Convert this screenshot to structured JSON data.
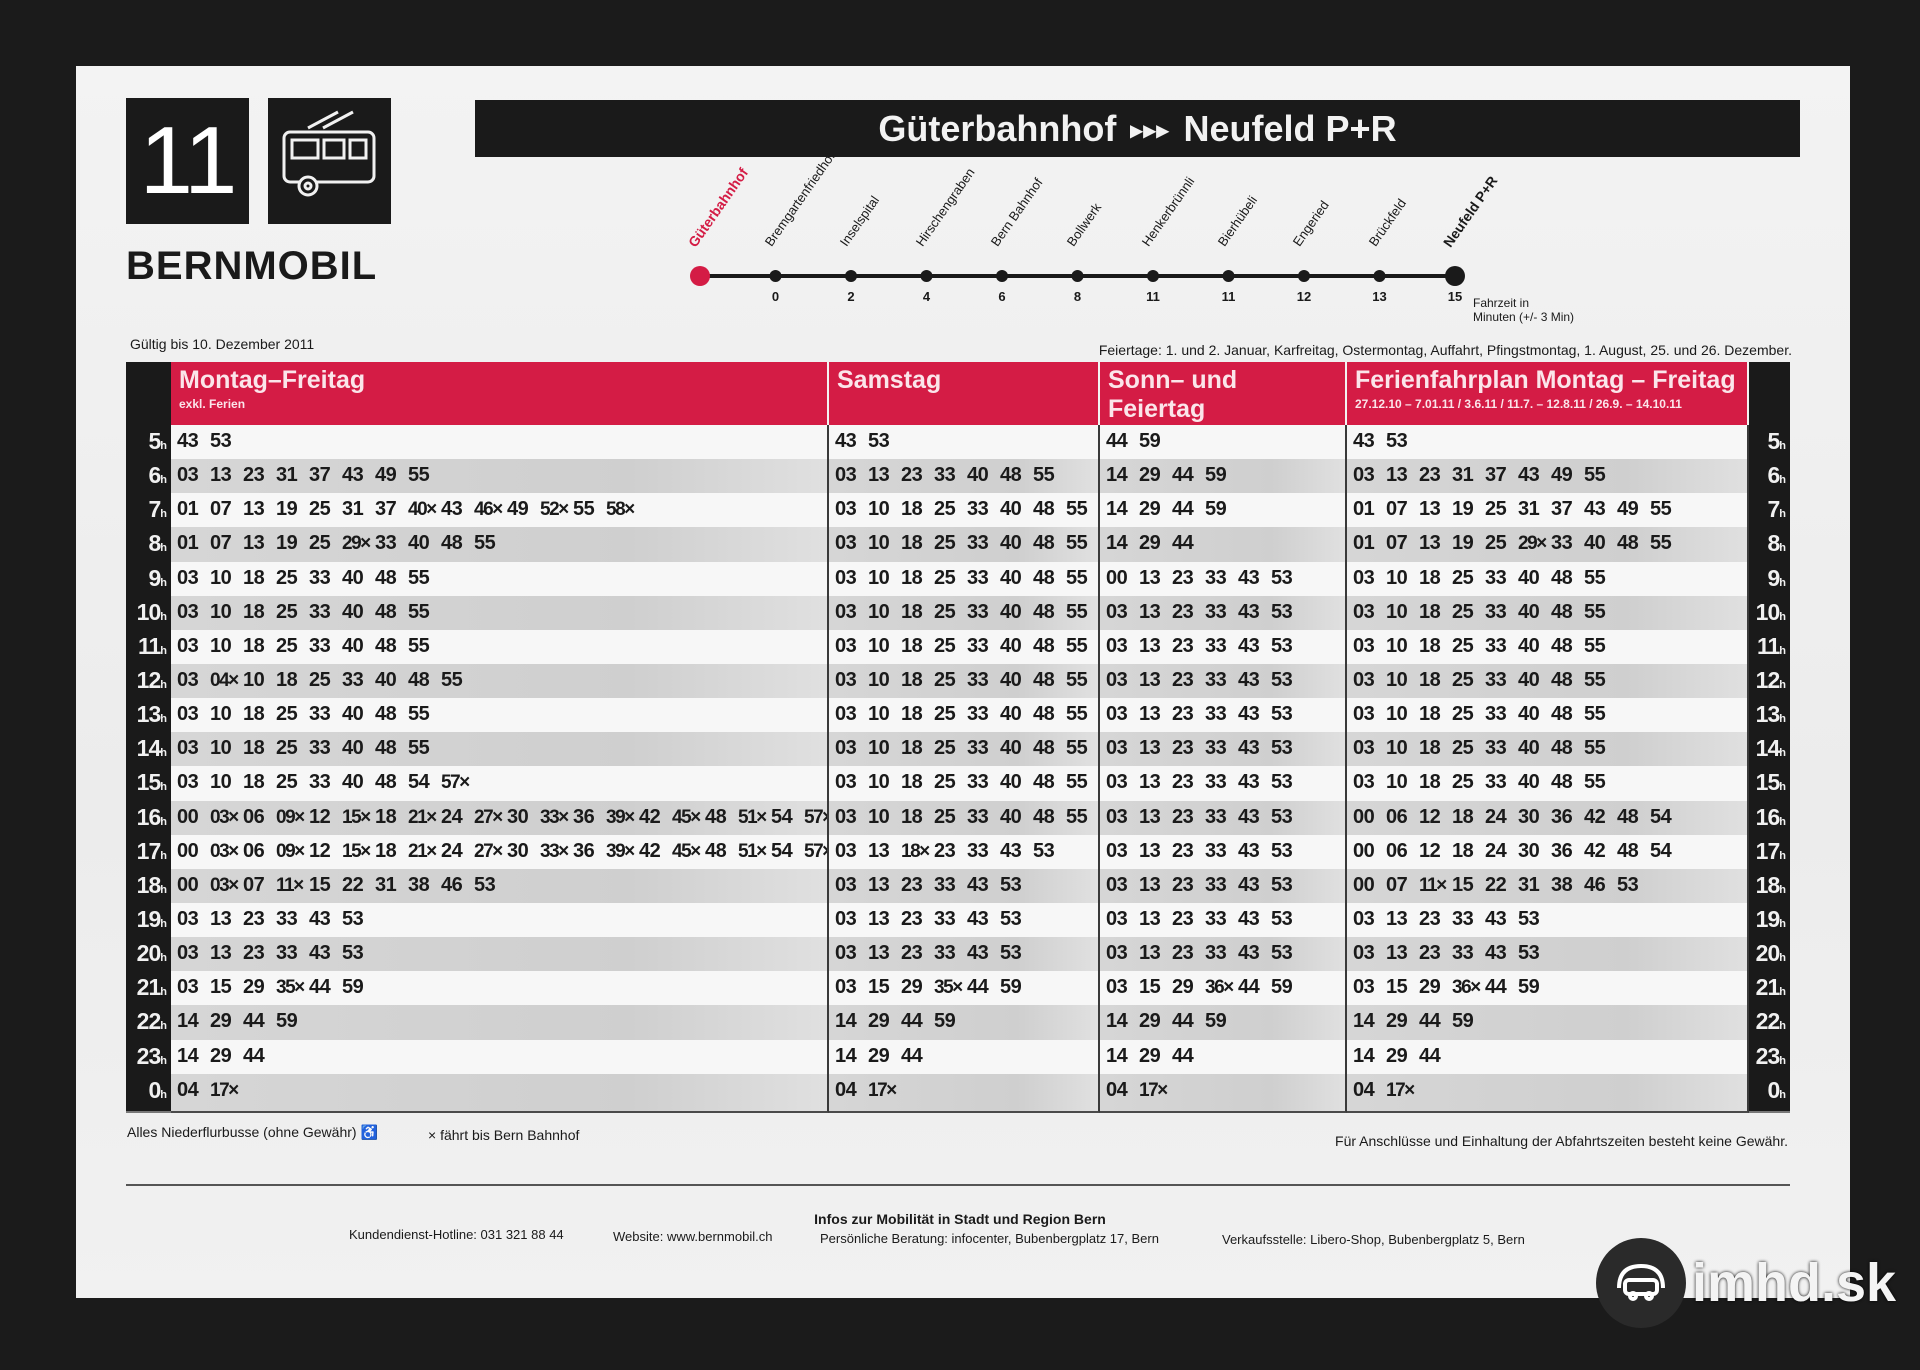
{
  "line": {
    "number": "11",
    "icon": "trolleybus-icon",
    "operator": "BERNMOBIL"
  },
  "route": {
    "from": "Güterbahnhof",
    "arrows": "▸▸▸",
    "to": "Neufeld P+R"
  },
  "stops": [
    {
      "name": "Güterbahnhof",
      "minutes": ""
    },
    {
      "name": "Bremgartenfriedhof",
      "minutes": "0"
    },
    {
      "name": "Inselspital",
      "minutes": "2"
    },
    {
      "name": "Hirschengraben",
      "minutes": "4"
    },
    {
      "name": "Bern Bahnhof",
      "minutes": "6"
    },
    {
      "name": "Bollwerk",
      "minutes": "8"
    },
    {
      "name": "Henkerbrünnli",
      "minutes": "11"
    },
    {
      "name": "Bierhübeli",
      "minutes": "11"
    },
    {
      "name": "Engeried",
      "minutes": "12"
    },
    {
      "name": "Brückfeld",
      "minutes": "13"
    },
    {
      "name": "Neufeld P+R",
      "minutes": "15"
    }
  ],
  "travel_time_note_1": "Fahrzeit in",
  "travel_time_note_2": "Minuten (+/- 3 Min)",
  "colors": {
    "accent": "#d41c45",
    "first_stop": "#d41c45",
    "dark": "#1a1a1a"
  },
  "valid_until": "Gültig bis 10. Dezember 2011",
  "holidays": "Feiertage: 1. und 2. Januar, Karfreitag, Ostermontag, Auffahrt, Pfingstmontag, 1. August, 25. und 26. Dezember.",
  "hour_suffix": "h",
  "hours": [
    "5",
    "6",
    "7",
    "8",
    "9",
    "10",
    "11",
    "12",
    "13",
    "14",
    "15",
    "16",
    "17",
    "18",
    "19",
    "20",
    "21",
    "22",
    "23",
    "0"
  ],
  "columns": [
    {
      "title": "Montag–Freitag",
      "subtitle": "exkl. Ferien",
      "rows": [
        [
          "43",
          "53"
        ],
        [
          "03",
          "13",
          "23",
          "31",
          "37",
          "43",
          "49",
          "55"
        ],
        [
          "01",
          "07",
          "13",
          "19",
          "25",
          "31",
          "37",
          "40×",
          "43",
          "46×",
          "49",
          "52×",
          "55",
          "58×"
        ],
        [
          "01",
          "07",
          "13",
          "19",
          "25",
          "29×",
          "33",
          "40",
          "48",
          "55"
        ],
        [
          "03",
          "10",
          "18",
          "25",
          "33",
          "40",
          "48",
          "55"
        ],
        [
          "03",
          "10",
          "18",
          "25",
          "33",
          "40",
          "48",
          "55"
        ],
        [
          "03",
          "10",
          "18",
          "25",
          "33",
          "40",
          "48",
          "55"
        ],
        [
          "03",
          "04×",
          "10",
          "18",
          "25",
          "33",
          "40",
          "48",
          "55"
        ],
        [
          "03",
          "10",
          "18",
          "25",
          "33",
          "40",
          "48",
          "55"
        ],
        [
          "03",
          "10",
          "18",
          "25",
          "33",
          "40",
          "48",
          "55"
        ],
        [
          "03",
          "10",
          "18",
          "25",
          "33",
          "40",
          "48",
          "54",
          "57×"
        ],
        [
          "00",
          "03×",
          "06",
          "09×",
          "12",
          "15×",
          "18",
          "21×",
          "24",
          "27×",
          "30",
          "33×",
          "36",
          "39×",
          "42",
          "45×",
          "48",
          "51×",
          "54",
          "57×"
        ],
        [
          "00",
          "03×",
          "06",
          "09×",
          "12",
          "15×",
          "18",
          "21×",
          "24",
          "27×",
          "30",
          "33×",
          "36",
          "39×",
          "42",
          "45×",
          "48",
          "51×",
          "54",
          "57×"
        ],
        [
          "00",
          "03×",
          "07",
          "11×",
          "15",
          "22",
          "31",
          "38",
          "46",
          "53"
        ],
        [
          "03",
          "13",
          "23",
          "33",
          "43",
          "53"
        ],
        [
          "03",
          "13",
          "23",
          "33",
          "43",
          "53"
        ],
        [
          "03",
          "15",
          "29",
          "35×",
          "44",
          "59"
        ],
        [
          "14",
          "29",
          "44",
          "59"
        ],
        [
          "14",
          "29",
          "44"
        ],
        [
          "04",
          "17×"
        ]
      ]
    },
    {
      "title": "Samstag",
      "subtitle": "",
      "rows": [
        [
          "43",
          "53"
        ],
        [
          "03",
          "13",
          "23",
          "33",
          "40",
          "48",
          "55"
        ],
        [
          "03",
          "10",
          "18",
          "25",
          "33",
          "40",
          "48",
          "55"
        ],
        [
          "03",
          "10",
          "18",
          "25",
          "33",
          "40",
          "48",
          "55"
        ],
        [
          "03",
          "10",
          "18",
          "25",
          "33",
          "40",
          "48",
          "55"
        ],
        [
          "03",
          "10",
          "18",
          "25",
          "33",
          "40",
          "48",
          "55"
        ],
        [
          "03",
          "10",
          "18",
          "25",
          "33",
          "40",
          "48",
          "55"
        ],
        [
          "03",
          "10",
          "18",
          "25",
          "33",
          "40",
          "48",
          "55"
        ],
        [
          "03",
          "10",
          "18",
          "25",
          "33",
          "40",
          "48",
          "55"
        ],
        [
          "03",
          "10",
          "18",
          "25",
          "33",
          "40",
          "48",
          "55"
        ],
        [
          "03",
          "10",
          "18",
          "25",
          "33",
          "40",
          "48",
          "55"
        ],
        [
          "03",
          "10",
          "18",
          "25",
          "33",
          "40",
          "48",
          "55"
        ],
        [
          "03",
          "13",
          "18×",
          "23",
          "33",
          "43",
          "53"
        ],
        [
          "03",
          "13",
          "23",
          "33",
          "43",
          "53"
        ],
        [
          "03",
          "13",
          "23",
          "33",
          "43",
          "53"
        ],
        [
          "03",
          "13",
          "23",
          "33",
          "43",
          "53"
        ],
        [
          "03",
          "15",
          "29",
          "35×",
          "44",
          "59"
        ],
        [
          "14",
          "29",
          "44",
          "59"
        ],
        [
          "14",
          "29",
          "44"
        ],
        [
          "04",
          "17×"
        ]
      ]
    },
    {
      "title": "Sonn– und Feiertag",
      "subtitle": "",
      "rows": [
        [
          "44",
          "59"
        ],
        [
          "14",
          "29",
          "44",
          "59"
        ],
        [
          "14",
          "29",
          "44",
          "59"
        ],
        [
          "14",
          "29",
          "44"
        ],
        [
          "00",
          "13",
          "23",
          "33",
          "43",
          "53"
        ],
        [
          "03",
          "13",
          "23",
          "33",
          "43",
          "53"
        ],
        [
          "03",
          "13",
          "23",
          "33",
          "43",
          "53"
        ],
        [
          "03",
          "13",
          "23",
          "33",
          "43",
          "53"
        ],
        [
          "03",
          "13",
          "23",
          "33",
          "43",
          "53"
        ],
        [
          "03",
          "13",
          "23",
          "33",
          "43",
          "53"
        ],
        [
          "03",
          "13",
          "23",
          "33",
          "43",
          "53"
        ],
        [
          "03",
          "13",
          "23",
          "33",
          "43",
          "53"
        ],
        [
          "03",
          "13",
          "23",
          "33",
          "43",
          "53"
        ],
        [
          "03",
          "13",
          "23",
          "33",
          "43",
          "53"
        ],
        [
          "03",
          "13",
          "23",
          "33",
          "43",
          "53"
        ],
        [
          "03",
          "13",
          "23",
          "33",
          "43",
          "53"
        ],
        [
          "03",
          "15",
          "29",
          "36×",
          "44",
          "59"
        ],
        [
          "14",
          "29",
          "44",
          "59"
        ],
        [
          "14",
          "29",
          "44"
        ],
        [
          "04",
          "17×"
        ]
      ]
    },
    {
      "title": "Ferienfahrplan Montag – Freitag",
      "subtitle": "27.12.10 – 7.01.11 / 3.6.11 / 11.7. – 12.8.11 / 26.9. – 14.10.11",
      "rows": [
        [
          "43",
          "53"
        ],
        [
          "03",
          "13",
          "23",
          "31",
          "37",
          "43",
          "49",
          "55"
        ],
        [
          "01",
          "07",
          "13",
          "19",
          "25",
          "31",
          "37",
          "43",
          "49",
          "55"
        ],
        [
          "01",
          "07",
          "13",
          "19",
          "25",
          "29×",
          "33",
          "40",
          "48",
          "55"
        ],
        [
          "03",
          "10",
          "18",
          "25",
          "33",
          "40",
          "48",
          "55"
        ],
        [
          "03",
          "10",
          "18",
          "25",
          "33",
          "40",
          "48",
          "55"
        ],
        [
          "03",
          "10",
          "18",
          "25",
          "33",
          "40",
          "48",
          "55"
        ],
        [
          "03",
          "10",
          "18",
          "25",
          "33",
          "40",
          "48",
          "55"
        ],
        [
          "03",
          "10",
          "18",
          "25",
          "33",
          "40",
          "48",
          "55"
        ],
        [
          "03",
          "10",
          "18",
          "25",
          "33",
          "40",
          "48",
          "55"
        ],
        [
          "03",
          "10",
          "18",
          "25",
          "33",
          "40",
          "48",
          "55"
        ],
        [
          "00",
          "06",
          "12",
          "18",
          "24",
          "30",
          "36",
          "42",
          "48",
          "54"
        ],
        [
          "00",
          "06",
          "12",
          "18",
          "24",
          "30",
          "36",
          "42",
          "48",
          "54"
        ],
        [
          "00",
          "07",
          "11×",
          "15",
          "22",
          "31",
          "38",
          "46",
          "53"
        ],
        [
          "03",
          "13",
          "23",
          "33",
          "43",
          "53"
        ],
        [
          "03",
          "13",
          "23",
          "33",
          "43",
          "53"
        ],
        [
          "03",
          "15",
          "29",
          "36×",
          "44",
          "59"
        ],
        [
          "14",
          "29",
          "44",
          "59"
        ],
        [
          "14",
          "29",
          "44"
        ],
        [
          "04",
          "17×"
        ]
      ]
    }
  ],
  "footnotes": {
    "low_floor": "Alles Niederflurbusse (ohne Gewähr) ♿",
    "marker_legend": "× fährt bis Bern Bahnhof",
    "disclaimer": "Für Anschlüsse und Einhaltung der Abfahrtszeiten besteht keine Gewähr."
  },
  "info": {
    "heading": "Infos zur Mobilität in Stadt und Region Bern",
    "hotline": "Kundendienst-Hotline: 031 321 88 44",
    "website": "Website: www.bernmobil.ch",
    "advice": "Persönliche Beratung: infocenter, Bubenbergplatz 17, Bern",
    "shop": "Verkaufsstelle: Libero-Shop, Bubenbergplatz 5, Bern"
  },
  "watermark": "imhd.sk"
}
